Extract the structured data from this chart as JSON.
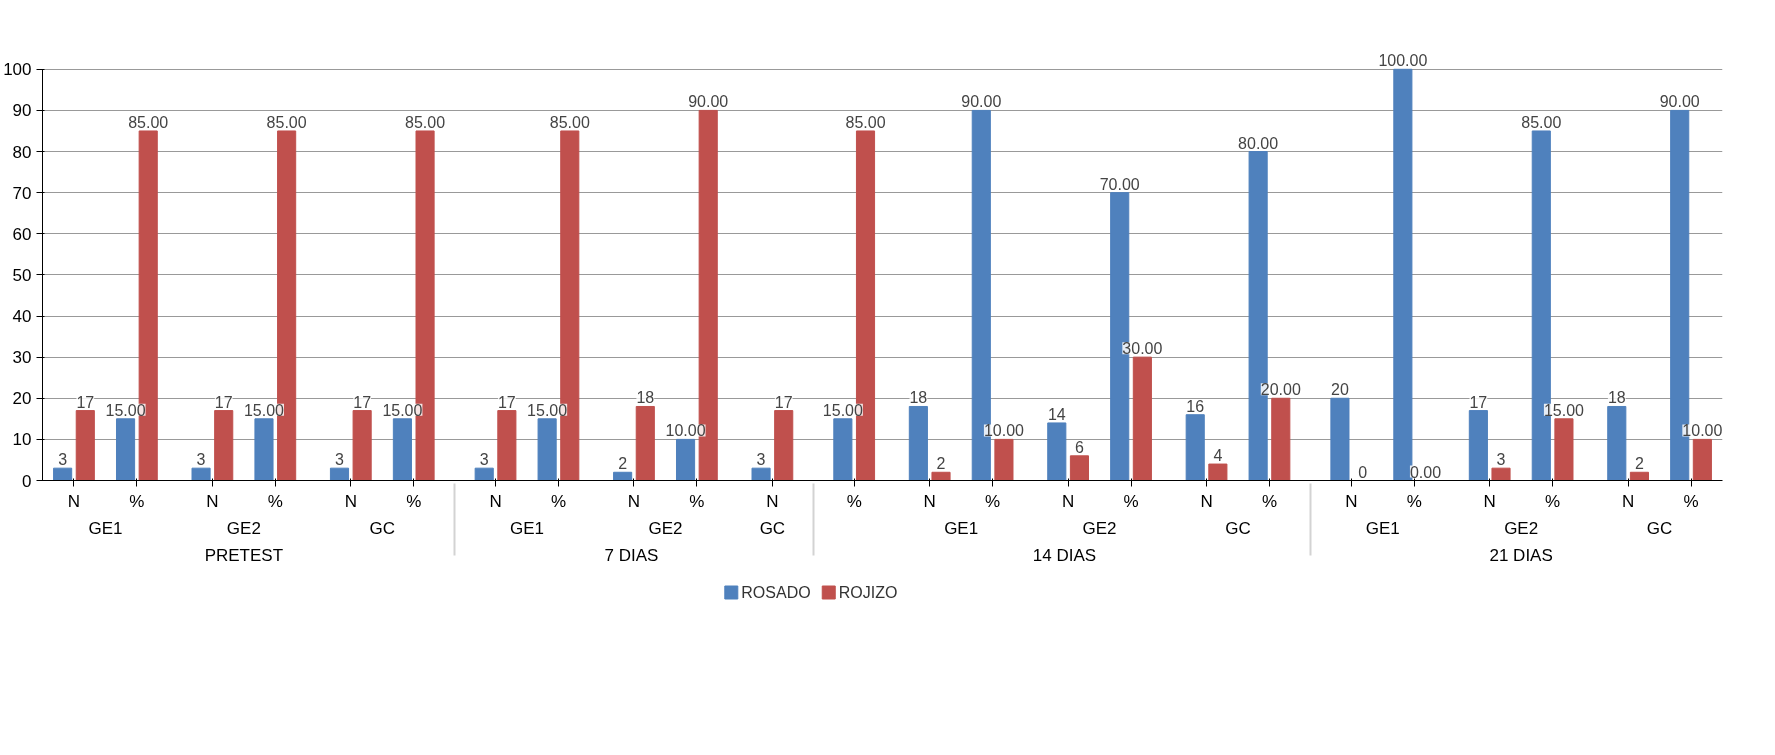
{
  "chart_data": {
    "type": "bar",
    "categories": [
      [
        "PRETEST",
        "GE1",
        "N"
      ],
      [
        null,
        null,
        "%"
      ],
      [
        null,
        "GE2",
        "N"
      ],
      [
        null,
        null,
        "%"
      ],
      [
        null,
        "GC",
        "N"
      ],
      [
        null,
        null,
        "%"
      ],
      [
        "7 DIAS",
        "GE1",
        "N"
      ],
      [
        null,
        null,
        "%"
      ],
      [
        null,
        "GE2",
        "N"
      ],
      [
        null,
        null,
        "%"
      ],
      [
        null,
        "GC",
        "N"
      ],
      [
        "14 DIAS",
        null,
        "%"
      ],
      [
        null,
        "GE1",
        "N"
      ],
      [
        null,
        null,
        "%"
      ],
      [
        null,
        "GE2",
        "N"
      ],
      [
        null,
        null,
        "%"
      ],
      [
        null,
        "GC",
        "N"
      ],
      [
        null,
        null,
        "%"
      ],
      [
        "21 DIAS",
        "GE1",
        "N"
      ],
      [
        null,
        null,
        "%"
      ],
      [
        null,
        "GE2",
        "N"
      ],
      [
        null,
        null,
        "%"
      ],
      [
        null,
        "GC",
        "N"
      ],
      [
        null,
        null,
        "%"
      ]
    ],
    "series": [
      {
        "name": "ROSADO",
        "color": "#4f81bd",
        "values": [
          3,
          15,
          3,
          15,
          3,
          15,
          3,
          15,
          2,
          10,
          3,
          15,
          18,
          90,
          14,
          70,
          16,
          80,
          20,
          100,
          17,
          85,
          18,
          90
        ],
        "value_labels": [
          "3",
          "15.00",
          "3",
          "15.00",
          "3",
          "15.00",
          "3",
          "15.00",
          "2",
          "10.00",
          "3",
          "15.00",
          "18",
          "90.00",
          "14",
          "70.00",
          "16",
          "80.00",
          "20",
          "100.00",
          "17",
          "85.00",
          "18",
          "90.00"
        ]
      },
      {
        "name": "ROJIZO",
        "color": "#c0504d",
        "values": [
          17,
          85,
          17,
          85,
          17,
          85,
          17,
          85,
          18,
          90,
          17,
          85,
          2,
          10,
          6,
          30,
          4,
          20,
          0,
          0,
          3,
          15,
          2,
          10
        ],
        "value_labels": [
          "17",
          "85.00",
          "17",
          "85.00",
          "17",
          "85.00",
          "17",
          "85.00",
          "18",
          "90.00",
          "17",
          "85.00",
          "2",
          "10.00",
          "6",
          "30.00",
          "4",
          "20.00",
          "0",
          "0.00",
          "3",
          "15.00",
          "2",
          "10.00"
        ]
      }
    ],
    "ylim": [
      0,
      100
    ],
    "yticks": [
      0,
      10,
      20,
      30,
      40,
      50,
      60,
      70,
      80,
      90,
      100
    ],
    "grid": "y",
    "legend": "bottom"
  }
}
